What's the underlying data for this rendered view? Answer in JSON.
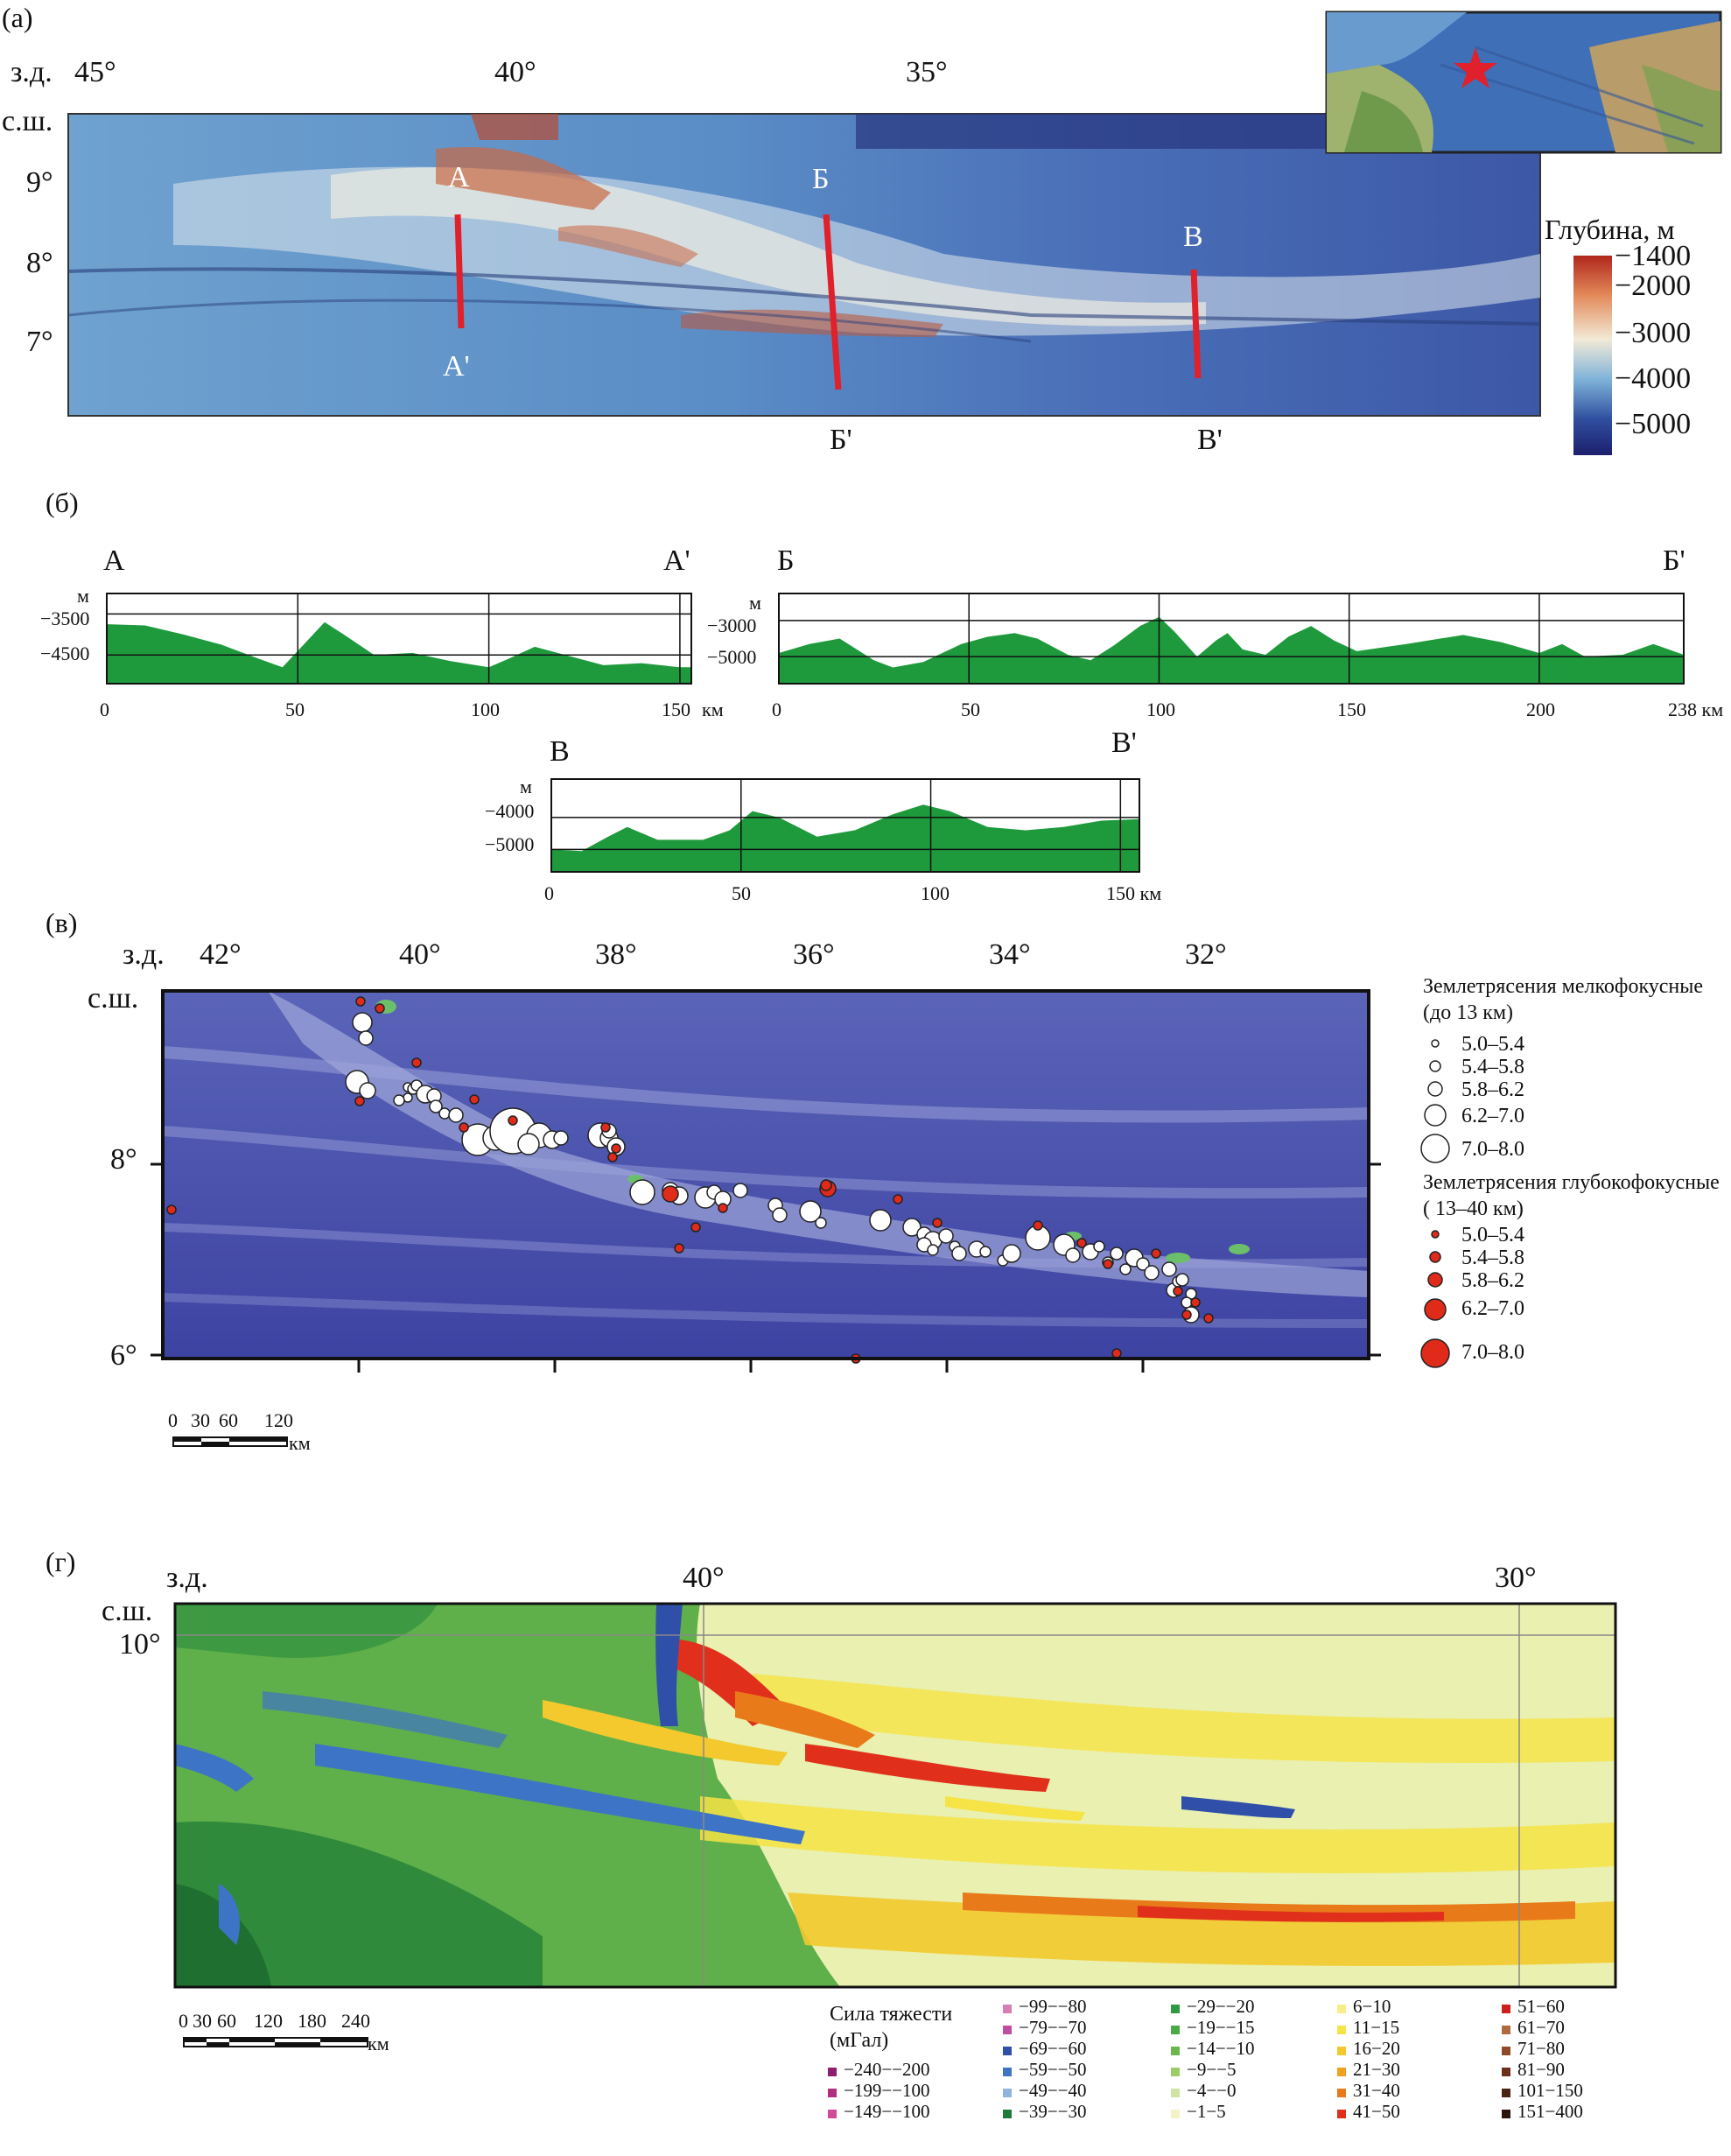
{
  "panel_a": {
    "label": "(а)",
    "lon_prefix": "з.д.",
    "lat_prefix": "с.ш.",
    "lon_ticks": [
      "45°",
      "40°",
      "35°"
    ],
    "lat_ticks": [
      "9°",
      "8°",
      "7°"
    ],
    "profile_labels": [
      "А",
      "А'",
      "Б",
      "Б'",
      "В",
      "В'"
    ],
    "colorbar": {
      "title": "Глубина, м",
      "ticks": [
        "−1400",
        "−2000",
        "−3000",
        "−4000",
        "−5000"
      ],
      "colors": [
        "#b0271c",
        "#e38a5a",
        "#f2ead6",
        "#7fb3d9",
        "#2f4f9e",
        "#1c1f6e"
      ]
    },
    "profile_line_color": "#e0202a"
  },
  "panel_b": {
    "label": "(б)",
    "unit_m": "м",
    "unit_km": "км",
    "profiles": [
      {
        "start": "А",
        "end": "А'",
        "y_ticks": [
          "−3500",
          "−4500"
        ],
        "x_ticks": [
          "0",
          "50",
          "100",
          "150"
        ],
        "length_km": 153,
        "depth_range": [
          -5200,
          -3000
        ],
        "points": [
          [
            0,
            -3750
          ],
          [
            10,
            -3780
          ],
          [
            20,
            -4000
          ],
          [
            30,
            -4250
          ],
          [
            40,
            -4600
          ],
          [
            46,
            -4800
          ],
          [
            52,
            -4200
          ],
          [
            57,
            -3700
          ],
          [
            62,
            -4000
          ],
          [
            70,
            -4500
          ],
          [
            80,
            -4450
          ],
          [
            90,
            -4650
          ],
          [
            100,
            -4800
          ],
          [
            105,
            -4600
          ],
          [
            112,
            -4300
          ],
          [
            120,
            -4500
          ],
          [
            130,
            -4750
          ],
          [
            140,
            -4700
          ],
          [
            150,
            -4800
          ],
          [
            153,
            -4800
          ]
        ]
      },
      {
        "start": "Б",
        "end": "Б'",
        "y_ticks": [
          "−3000",
          "−5000"
        ],
        "x_ticks": [
          "0",
          "50",
          "100",
          "150",
          "200",
          "238 км"
        ],
        "length_km": 238,
        "depth_range": [
          -6500,
          -1500
        ],
        "points": [
          [
            0,
            -4800
          ],
          [
            8,
            -4300
          ],
          [
            16,
            -4000
          ],
          [
            25,
            -5200
          ],
          [
            30,
            -5600
          ],
          [
            38,
            -5300
          ],
          [
            48,
            -4300
          ],
          [
            55,
            -3900
          ],
          [
            62,
            -3700
          ],
          [
            68,
            -4000
          ],
          [
            76,
            -4900
          ],
          [
            82,
            -5200
          ],
          [
            88,
            -4400
          ],
          [
            95,
            -3300
          ],
          [
            100,
            -2800
          ],
          [
            104,
            -3600
          ],
          [
            110,
            -5000
          ],
          [
            115,
            -4100
          ],
          [
            118,
            -3700
          ],
          [
            122,
            -4600
          ],
          [
            128,
            -4900
          ],
          [
            134,
            -3900
          ],
          [
            140,
            -3300
          ],
          [
            146,
            -4100
          ],
          [
            152,
            -4700
          ],
          [
            165,
            -4300
          ],
          [
            180,
            -3800
          ],
          [
            190,
            -4200
          ],
          [
            200,
            -4800
          ],
          [
            206,
            -4300
          ],
          [
            212,
            -5000
          ],
          [
            222,
            -4900
          ],
          [
            230,
            -4300
          ],
          [
            238,
            -4900
          ]
        ]
      },
      {
        "start": "В",
        "end": "В'",
        "y_ticks": [
          "−4000",
          "−5000"
        ],
        "x_ticks": [
          "0",
          "50",
          "100",
          "150 км"
        ],
        "length_km": 155,
        "depth_range": [
          -5700,
          -2800
        ],
        "points": [
          [
            0,
            -5000
          ],
          [
            8,
            -5050
          ],
          [
            15,
            -4600
          ],
          [
            20,
            -4300
          ],
          [
            28,
            -4700
          ],
          [
            40,
            -4700
          ],
          [
            47,
            -4400
          ],
          [
            53,
            -3800
          ],
          [
            60,
            -4000
          ],
          [
            70,
            -4600
          ],
          [
            80,
            -4400
          ],
          [
            90,
            -3900
          ],
          [
            98,
            -3600
          ],
          [
            105,
            -3800
          ],
          [
            115,
            -4300
          ],
          [
            125,
            -4400
          ],
          [
            135,
            -4300
          ],
          [
            145,
            -4100
          ],
          [
            155,
            -4050
          ]
        ]
      }
    ],
    "fill_color": "#1e9a3c"
  },
  "panel_v": {
    "label": "(в)",
    "lon_prefix": "з.д.",
    "lat_prefix": "с.ш.",
    "lon_ticks": [
      "42°",
      "40°",
      "38°",
      "36°",
      "34°",
      "32°"
    ],
    "lat_ticks": [
      "8°",
      "6°"
    ],
    "scale_labels": [
      "0",
      "30",
      "60",
      "120",
      "км"
    ],
    "legend": {
      "shallow_title": "Землетрясения мелкофокусные (до 13 км)",
      "shallow_classes": [
        "5.0–5.4",
        "5.4–5.8",
        "5.8–6.2",
        "6.2–7.0",
        "7.0–8.0"
      ],
      "deep_title": "Землетрясения глубокофокусные ( 13–40 км)",
      "deep_classes": [
        "5.0–5.4",
        "5.4–5.8",
        "5.8–6.2",
        "6.2–7.0",
        "7.0–8.0"
      ],
      "shallow_color": "#ffffff",
      "deep_color": "#e02a1a"
    }
  },
  "panel_g": {
    "label": "(г)",
    "lon_prefix": "з.д.",
    "lat_prefix": "с.ш.",
    "lon_ticks": [
      "40°",
      "30°"
    ],
    "lat_ticks": [
      "10°"
    ],
    "scale_labels": [
      "0",
      "30",
      "60",
      "120",
      "180",
      "240",
      "км"
    ],
    "legend_title": "Сила тяжести (мГал)",
    "legend_items": [
      {
        "label": "−240−−200",
        "color": "#8e1f6e"
      },
      {
        "label": "−199−−100",
        "color": "#b0307f"
      },
      {
        "label": "−149−−100",
        "color": "#d04a98"
      },
      {
        "label": "−99−−80",
        "color": "#d77fb5"
      },
      {
        "label": "−79−−70",
        "color": "#c04ea0"
      },
      {
        "label": "−69−−60",
        "color": "#2f4fa8"
      },
      {
        "label": "−59−−50",
        "color": "#3e74c6"
      },
      {
        "label": "−49−−40",
        "color": "#8fb3dd"
      },
      {
        "label": "−39−−30",
        "color": "#1f7a3a"
      },
      {
        "label": "−29−−20",
        "color": "#2f9a44"
      },
      {
        "label": "−19−−15",
        "color": "#49ab48"
      },
      {
        "label": "−14−−10",
        "color": "#6ab84c"
      },
      {
        "label": "−9−−5",
        "color": "#9fcc6a"
      },
      {
        "label": "−4−−0",
        "color": "#cfe3a6"
      },
      {
        "label": "−1−5",
        "color": "#f4f3c8"
      },
      {
        "label": "6−10",
        "color": "#f7ee8a"
      },
      {
        "label": "11−15",
        "color": "#f6e345"
      },
      {
        "label": "16−20",
        "color": "#f3c92d"
      },
      {
        "label": "21−30",
        "color": "#efa21f"
      },
      {
        "label": "31−40",
        "color": "#e97a1a"
      },
      {
        "label": "41−50",
        "color": "#e0301b"
      },
      {
        "label": "51−60",
        "color": "#c9201e"
      },
      {
        "label": "61−70",
        "color": "#b06a3e"
      },
      {
        "label": "71−80",
        "color": "#8f4a2a"
      },
      {
        "label": "81−90",
        "color": "#6b2f1c"
      },
      {
        "label": "101−150",
        "color": "#4a2414"
      },
      {
        "label": "151−400",
        "color": "#2a140c"
      }
    ]
  }
}
